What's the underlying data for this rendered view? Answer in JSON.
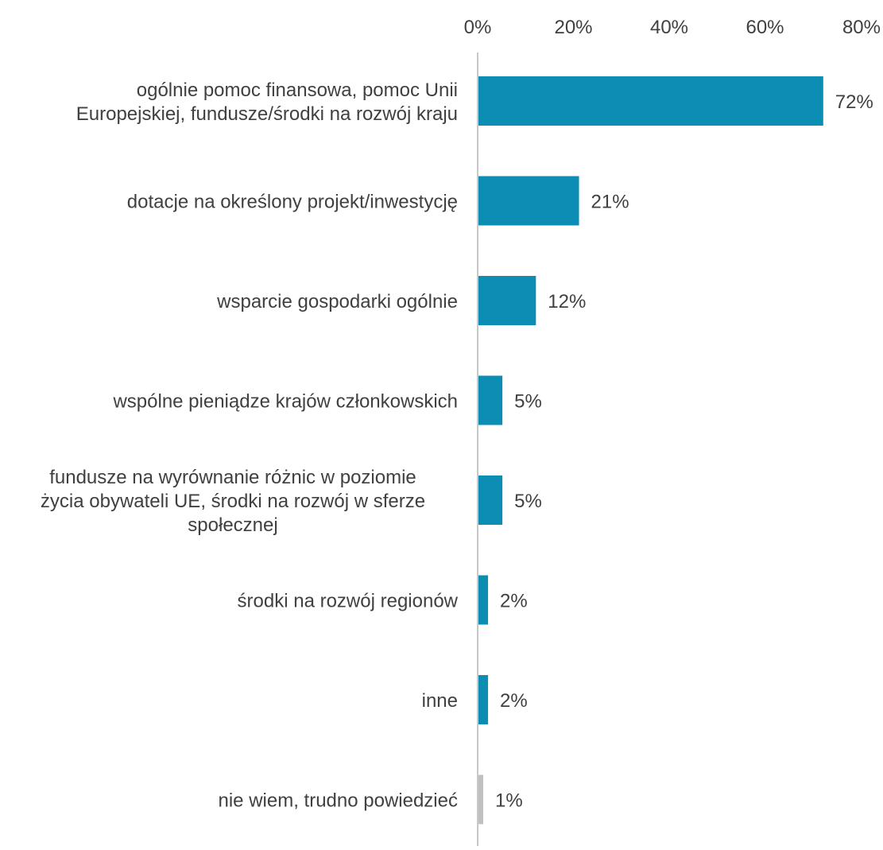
{
  "chart_data": {
    "type": "bar",
    "orientation": "horizontal",
    "categories": [
      [
        "ogólnie pomoc finansowa, pomoc Unii",
        "Europejskiej, fundusze/środki na rozwój kraju"
      ],
      [
        "dotacje na określony projekt/inwestycję"
      ],
      [
        "wsparcie gospodarki ogólnie"
      ],
      [
        "wspólne pieniądze krajów członkowskich"
      ],
      [
        "fundusze na wyrównanie różnic w poziomie",
        "życia obywateli UE, środki na rozwój w sferze",
        "społecznej"
      ],
      [
        "środki na rozwój regionów"
      ],
      [
        "inne"
      ],
      [
        "nie wiem, trudno powiedzieć"
      ]
    ],
    "values": [
      72,
      21,
      12,
      5,
      5,
      2,
      2,
      1
    ],
    "data_labels": [
      "72%",
      "21%",
      "12%",
      "5%",
      "5%",
      "2%",
      "2%",
      "1%"
    ],
    "bar_colors": [
      "#0b8db4",
      "#0b8db4",
      "#0b8db4",
      "#0b8db4",
      "#0b8db4",
      "#0b8db4",
      "#0b8db4",
      "#c0c0c0"
    ],
    "xaxis": {
      "position": "top",
      "ticks": [
        0,
        20,
        40,
        60,
        80
      ],
      "tick_labels": [
        "0%",
        "20%",
        "40%",
        "60%",
        "80%"
      ],
      "range": [
        0,
        80
      ]
    },
    "title": "",
    "xlabel": "",
    "ylabel": "",
    "grid": false,
    "legend": "none",
    "axis_line_color": "#c8c8c8",
    "text_color": "#404040"
  }
}
